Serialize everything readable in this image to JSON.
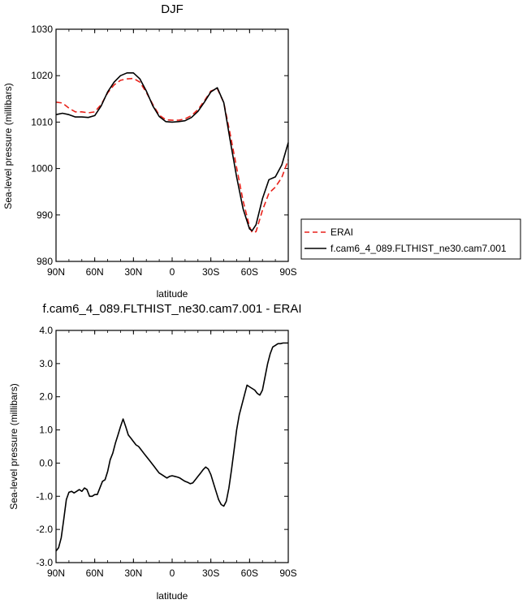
{
  "colors": {
    "model": "#000000",
    "obs": "#e8221b",
    "frame": "#000000"
  },
  "chart_data": [
    {
      "type": "line",
      "title": "DJF",
      "xlabel": "latitude",
      "ylabel": "Sea-level pressure (millibars)",
      "xlim": [
        90,
        -90
      ],
      "ylim": [
        980,
        1030
      ],
      "xticks": [
        90,
        60,
        30,
        0,
        -30,
        -60,
        -90
      ],
      "xtick_labels": [
        "90N",
        "60N",
        "30N",
        "0",
        "30S",
        "60S",
        "90S"
      ],
      "yticks": [
        980,
        990,
        1000,
        1010,
        1020,
        1030
      ],
      "ytick_labels": [
        "980",
        "990",
        "1000",
        "1010",
        "1020",
        "1030"
      ],
      "legend": {
        "position": "right"
      },
      "series": [
        {
          "name": "ERAI",
          "style": "dashed",
          "color": "#e8221b",
          "x": [
            90,
            85,
            80,
            75,
            70,
            65,
            60,
            55,
            50,
            45,
            40,
            35,
            30,
            25,
            20,
            15,
            10,
            5,
            0,
            -5,
            -10,
            -15,
            -20,
            -25,
            -30,
            -35,
            -40,
            -45,
            -50,
            -55,
            -60,
            -62,
            -65,
            -70,
            -75,
            -80,
            -85,
            -90
          ],
          "y": [
            1014.3,
            1014.1,
            1013.0,
            1012.2,
            1012.2,
            1012.0,
            1012.2,
            1013.8,
            1016.3,
            1018.0,
            1019.0,
            1019.3,
            1019.4,
            1018.6,
            1016.4,
            1013.8,
            1011.5,
            1010.5,
            1010.4,
            1010.4,
            1010.7,
            1011.4,
            1012.7,
            1014.6,
            1016.7,
            1017.2,
            1014.2,
            1007.4,
            1000.2,
            993.0,
            987.5,
            986.2,
            986.4,
            991.0,
            994.7,
            996.0,
            998.1,
            1001.9
          ]
        },
        {
          "name": "f.cam6_4_089.FLTHIST_ne30.cam7.001",
          "style": "solid",
          "color": "#000000",
          "x": [
            90,
            85,
            80,
            75,
            70,
            65,
            60,
            55,
            50,
            45,
            40,
            35,
            30,
            25,
            20,
            15,
            10,
            5,
            0,
            -5,
            -10,
            -15,
            -20,
            -25,
            -30,
            -35,
            -40,
            -45,
            -50,
            -55,
            -60,
            -62,
            -65,
            -70,
            -75,
            -80,
            -85,
            -90
          ],
          "y": [
            1011.6,
            1011.9,
            1011.6,
            1011.1,
            1011.1,
            1011.0,
            1011.4,
            1013.5,
            1016.5,
            1018.6,
            1020.0,
            1020.6,
            1020.6,
            1019.3,
            1016.7,
            1013.5,
            1011.2,
            1010.1,
            1010.0,
            1010.1,
            1010.3,
            1011.0,
            1012.3,
            1014.3,
            1016.5,
            1017.4,
            1014.2,
            1006.0,
            998.2,
            991.3,
            987.0,
            986.6,
            987.9,
            993.5,
            997.6,
            998.2,
            1000.8,
            1005.6
          ]
        }
      ]
    },
    {
      "type": "line",
      "title": "f.cam6_4_089.FLTHIST_ne30.cam7.001 - ERAI",
      "xlabel": "latitude",
      "ylabel": "Sea-level pressure (millibars)",
      "xlim": [
        90,
        -90
      ],
      "ylim": [
        -3.0,
        4.0
      ],
      "xticks": [
        90,
        60,
        30,
        0,
        -30,
        -60,
        -90
      ],
      "xtick_labels": [
        "90N",
        "60N",
        "30N",
        "0",
        "30S",
        "60S",
        "90S"
      ],
      "yticks": [
        -3.0,
        -2.0,
        -1.0,
        0.0,
        1.0,
        2.0,
        3.0,
        4.0
      ],
      "ytick_labels": [
        "-3.0",
        "-2.0",
        "-1.0",
        "0.0",
        "1.0",
        "2.0",
        "3.0",
        "4.0"
      ],
      "series": [
        {
          "style": "solid",
          "color": "#000000",
          "x": [
            90,
            88,
            86,
            84,
            82,
            80,
            78,
            76,
            74,
            72,
            70,
            68,
            66,
            64,
            62,
            60,
            58,
            56,
            54,
            52,
            50,
            48,
            46,
            44,
            42,
            40,
            38,
            36,
            34,
            32,
            30,
            28,
            26,
            24,
            22,
            20,
            18,
            16,
            14,
            12,
            10,
            8,
            6,
            4,
            2,
            0,
            -2,
            -4,
            -6,
            -8,
            -10,
            -12,
            -14,
            -16,
            -18,
            -20,
            -22,
            -24,
            -26,
            -28,
            -30,
            -32,
            -34,
            -36,
            -38,
            -40,
            -42,
            -44,
            -46,
            -48,
            -50,
            -52,
            -54,
            -56,
            -58,
            -60,
            -62,
            -64,
            -66,
            -68,
            -70,
            -72,
            -74,
            -76,
            -78,
            -80,
            -82,
            -84,
            -86,
            -88,
            -90
          ],
          "y": [
            -2.65,
            -2.55,
            -2.25,
            -1.7,
            -1.1,
            -0.88,
            -0.85,
            -0.9,
            -0.85,
            -0.8,
            -0.85,
            -0.75,
            -0.8,
            -1.0,
            -1.0,
            -0.95,
            -0.95,
            -0.75,
            -0.55,
            -0.5,
            -0.25,
            0.1,
            0.3,
            0.6,
            0.85,
            1.1,
            1.33,
            1.1,
            0.85,
            0.75,
            0.65,
            0.55,
            0.5,
            0.4,
            0.3,
            0.2,
            0.1,
            0.0,
            -0.1,
            -0.2,
            -0.3,
            -0.35,
            -0.4,
            -0.45,
            -0.4,
            -0.38,
            -0.4,
            -0.42,
            -0.45,
            -0.5,
            -0.55,
            -0.58,
            -0.62,
            -0.6,
            -0.5,
            -0.4,
            -0.3,
            -0.2,
            -0.12,
            -0.18,
            -0.35,
            -0.6,
            -0.85,
            -1.1,
            -1.25,
            -1.3,
            -1.15,
            -0.75,
            -0.2,
            0.4,
            1.0,
            1.45,
            1.75,
            2.05,
            2.35,
            2.3,
            2.25,
            2.2,
            2.1,
            2.05,
            2.2,
            2.6,
            3.0,
            3.3,
            3.5,
            3.55,
            3.6,
            3.6,
            3.62,
            3.62,
            3.62
          ]
        }
      ]
    }
  ]
}
